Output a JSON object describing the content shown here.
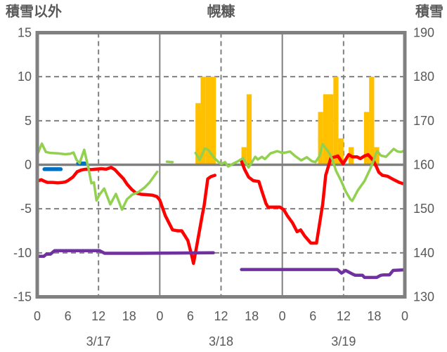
{
  "chart_data": {
    "type": "combo_bar_line",
    "title": "幌糠",
    "left_axis": {
      "title": "積雪以外",
      "range": [
        -15,
        15
      ],
      "ticks": [
        15,
        10,
        5,
        0,
        -5,
        -10,
        -15
      ]
    },
    "right_axis": {
      "title": "積雪",
      "range": [
        130,
        190
      ],
      "ticks": [
        190,
        180,
        170,
        160,
        150,
        140,
        130
      ]
    },
    "x_axis": {
      "range_hours": [
        0,
        72
      ],
      "hour_ticks": [
        [
          0,
          "0"
        ],
        [
          6,
          "6"
        ],
        [
          12,
          "12"
        ],
        [
          18,
          "18"
        ],
        [
          24,
          "0"
        ],
        [
          30,
          "6"
        ],
        [
          36,
          "12"
        ],
        [
          42,
          "18"
        ],
        [
          48,
          "0"
        ],
        [
          54,
          "6"
        ],
        [
          60,
          "12"
        ],
        [
          66,
          "18"
        ],
        [
          72,
          "0"
        ]
      ],
      "day_labels": [
        {
          "h": 12,
          "label": "3/17"
        },
        {
          "h": 36,
          "label": "3/18"
        },
        {
          "h": 60,
          "label": "3/19"
        }
      ],
      "dashed_vlines_hours": [
        12,
        36,
        60
      ],
      "solid_vlines_hours": [
        24,
        48
      ]
    },
    "gridlines": {
      "dashed_left_values": [
        10,
        5,
        -5,
        -10
      ],
      "zero_line_value": 0
    },
    "colors": {
      "orange": "#FFC000",
      "red": "#FF0000",
      "green": "#92D050",
      "purple": "#7030A0",
      "blue": "#0070C0",
      "grid": "#808080",
      "text": "#595959"
    },
    "bars": {
      "id": "orange-bars",
      "axis": "left",
      "color_key": "orange",
      "values": [
        [
          31,
          7
        ],
        [
          32,
          10
        ],
        [
          33,
          10
        ],
        [
          34,
          10
        ],
        [
          40,
          2
        ],
        [
          41,
          8
        ],
        [
          55,
          6
        ],
        [
          56,
          8
        ],
        [
          57,
          8
        ],
        [
          58,
          10
        ],
        [
          59,
          3
        ],
        [
          61,
          2
        ],
        [
          64,
          6
        ],
        [
          65,
          10
        ],
        [
          66,
          2
        ]
      ]
    },
    "series": [
      {
        "id": "blue-line",
        "axis": "left",
        "color_key": "blue",
        "width": 5.5,
        "segments": [
          [
            [
              1.4,
              -0.5
            ],
            [
              4.6,
              -0.5
            ]
          ],
          [
            [
              8.0,
              0.15
            ],
            [
              9.3,
              0.15
            ]
          ]
        ]
      },
      {
        "id": "red-line",
        "axis": "left",
        "color_key": "red",
        "width": 4.5,
        "segments": [
          [
            [
              0,
              -1.85
            ],
            [
              0.8,
              -1.7
            ],
            [
              1.5,
              -1.9
            ],
            [
              2,
              -2.0
            ],
            [
              3,
              -2.0
            ],
            [
              4,
              -2.05
            ],
            [
              5,
              -2.0
            ],
            [
              5.5,
              -1.95
            ],
            [
              6,
              -1.8
            ],
            [
              7,
              -1.4
            ],
            [
              7.8,
              -0.8
            ],
            [
              8.6,
              -0.6
            ],
            [
              9.5,
              -0.5
            ],
            [
              10.5,
              -0.55
            ],
            [
              11.5,
              -0.5
            ],
            [
              12.6,
              -0.45
            ],
            [
              13.5,
              -0.5
            ],
            [
              14.5,
              -0.3
            ],
            [
              15.2,
              -0.55
            ],
            [
              16,
              -1.05
            ],
            [
              16.9,
              -1.6
            ],
            [
              17.6,
              -2.2
            ],
            [
              18.5,
              -2.8
            ],
            [
              19.3,
              -3.2
            ],
            [
              20.3,
              -3.35
            ],
            [
              21.5,
              -3.4
            ],
            [
              22.5,
              -3.45
            ],
            [
              23.4,
              -3.6
            ],
            [
              24,
              -4.0
            ],
            [
              25.1,
              -5.8
            ],
            [
              26.5,
              -7.4
            ],
            [
              27.5,
              -7.5
            ],
            [
              28.3,
              -7.5
            ],
            [
              29.5,
              -8.6
            ],
            [
              30.2,
              -10.2
            ],
            [
              30.6,
              -11.2
            ],
            [
              31.3,
              -9.0
            ],
            [
              32.3,
              -5.8
            ],
            [
              32.7,
              -4.6
            ],
            [
              33.4,
              -1.6
            ],
            [
              34,
              -1.35
            ],
            [
              34.8,
              -1.2
            ]
          ],
          [
            [
              40,
              0.4
            ],
            [
              40.6,
              -0.5
            ],
            [
              41.4,
              -1.4
            ],
            [
              42.3,
              -1.8
            ],
            [
              43.4,
              -1.9
            ],
            [
              44,
              -3.0
            ],
            [
              44.8,
              -4.4
            ],
            [
              45.2,
              -4.8
            ],
            [
              46,
              -4.8
            ],
            [
              47.5,
              -4.8
            ],
            [
              48.3,
              -5.1
            ],
            [
              49,
              -5.8
            ],
            [
              50,
              -6.6
            ],
            [
              50.9,
              -7.6
            ],
            [
              51.6,
              -7.4
            ],
            [
              52.4,
              -8.1
            ],
            [
              53.6,
              -8.9
            ],
            [
              54.7,
              -8.9
            ],
            [
              55.9,
              -4.5
            ],
            [
              56.5,
              -1.2
            ],
            [
              57.5,
              0.75
            ],
            [
              58.9,
              1.0
            ],
            [
              59.9,
              0.1
            ],
            [
              61,
              1.15
            ],
            [
              61.7,
              0.9
            ],
            [
              62.6,
              0.9
            ],
            [
              63.3,
              0.7
            ],
            [
              64.1,
              1.0
            ],
            [
              64.8,
              1.15
            ],
            [
              65.8,
              0.5
            ],
            [
              66.5,
              -0.3
            ],
            [
              66.9,
              -0.85
            ],
            [
              67.6,
              -1.2
            ],
            [
              68.6,
              -1.3
            ],
            [
              69.7,
              -1.65
            ],
            [
              70.9,
              -2.0
            ],
            [
              72,
              -2.2
            ]
          ]
        ]
      },
      {
        "id": "green-line",
        "axis": "left",
        "color_key": "green",
        "width": 3.5,
        "segments": [
          [
            [
              0,
              1.1
            ],
            [
              0.9,
              2.4
            ],
            [
              1.7,
              1.45
            ],
            [
              2.5,
              1.35
            ],
            [
              4,
              1.3
            ],
            [
              5.5,
              1.2
            ],
            [
              6.5,
              1.25
            ],
            [
              7.1,
              1.4
            ],
            [
              7.7,
              0.55
            ],
            [
              8.3,
              0.2
            ],
            [
              9.2,
              1.7
            ],
            [
              10,
              -0.3
            ],
            [
              10.6,
              -2.1
            ],
            [
              11.1,
              -2.0
            ],
            [
              11.6,
              -4.05
            ],
            [
              12.2,
              -3.4
            ],
            [
              13.1,
              -2.7
            ],
            [
              14.3,
              -4.5
            ],
            [
              15.4,
              -3.3
            ],
            [
              16.6,
              -5.1
            ],
            [
              17.6,
              -3.9
            ],
            [
              18.6,
              -3.4
            ],
            [
              19.8,
              -3.1
            ],
            [
              21,
              -2.6
            ],
            [
              22,
              -2.0
            ],
            [
              23,
              -1.2
            ],
            [
              23.5,
              -0.8
            ]
          ],
          [
            [
              25.4,
              0.35
            ],
            [
              26.5,
              0.3
            ]
          ],
          [
            [
              31,
              1.35
            ],
            [
              31.8,
              0.55
            ],
            [
              32.8,
              1.85
            ],
            [
              33.5,
              1.7
            ],
            [
              34.5,
              0.9
            ],
            [
              35.5,
              0.3
            ],
            [
              36.1,
              0.1
            ],
            [
              36.8,
              0.3
            ],
            [
              37.4,
              -0.2
            ],
            [
              38.3,
              0.1
            ],
            [
              39.3,
              0.4
            ],
            [
              40.3,
              0.75
            ],
            [
              41.4,
              -0.3
            ],
            [
              42.7,
              0.9
            ],
            [
              43.2,
              0.6
            ],
            [
              44,
              0.9
            ],
            [
              44.6,
              0.65
            ],
            [
              45.7,
              1.3
            ],
            [
              46.5,
              1.45
            ],
            [
              47,
              1.55
            ],
            [
              48,
              1.35
            ],
            [
              48.7,
              1.4
            ],
            [
              49.5,
              1.5
            ],
            [
              50.5,
              1.0
            ],
            [
              51.7,
              0.5
            ],
            [
              52.8,
              0.85
            ],
            [
              53.8,
              0.4
            ],
            [
              54.5,
              0.3
            ],
            [
              55.3,
              1.0
            ],
            [
              55.9,
              2.35
            ],
            [
              56.6,
              1.8
            ],
            [
              57.1,
              1.4
            ],
            [
              57.8,
              0.6
            ],
            [
              58.5,
              -0.65
            ],
            [
              59.5,
              -1.8
            ],
            [
              60.4,
              -3.0
            ],
            [
              61.3,
              -3.9
            ],
            [
              61.7,
              -4.1
            ],
            [
              62.8,
              -2.9
            ],
            [
              64.1,
              -1.85
            ],
            [
              65.2,
              -0.5
            ],
            [
              65.8,
              0.35
            ],
            [
              66.3,
              1.2
            ],
            [
              66.6,
              1.55
            ],
            [
              67.3,
              1.05
            ],
            [
              68.3,
              0.9
            ],
            [
              69.3,
              1.5
            ],
            [
              69.8,
              1.8
            ],
            [
              70.6,
              1.5
            ],
            [
              71.2,
              1.45
            ],
            [
              72,
              1.6
            ]
          ]
        ]
      },
      {
        "id": "purple-line",
        "axis": "right",
        "color_key": "purple",
        "width": 4.5,
        "segments": [
          [
            [
              0,
              139.2
            ],
            [
              1.3,
              139.2
            ],
            [
              1.8,
              139.7
            ],
            [
              2.6,
              139.7
            ],
            [
              3.4,
              140.5
            ],
            [
              12.2,
              140.5
            ],
            [
              13.2,
              139.9
            ],
            [
              20,
              139.9
            ],
            [
              34.5,
              140.0
            ]
          ],
          [
            [
              40,
              136.2
            ],
            [
              58.8,
              136.2
            ],
            [
              59.6,
              135.4
            ],
            [
              60.4,
              136.0
            ],
            [
              61.7,
              135.2
            ],
            [
              62.3,
              134.9
            ],
            [
              63.7,
              134.9
            ],
            [
              64.1,
              134.4
            ],
            [
              66.5,
              134.4
            ],
            [
              67.3,
              134.9
            ],
            [
              67.9,
              135.0
            ],
            [
              69,
              135.0
            ],
            [
              69.7,
              136.0
            ],
            [
              71.4,
              136.1
            ],
            [
              72,
              136.2
            ]
          ]
        ]
      }
    ]
  }
}
